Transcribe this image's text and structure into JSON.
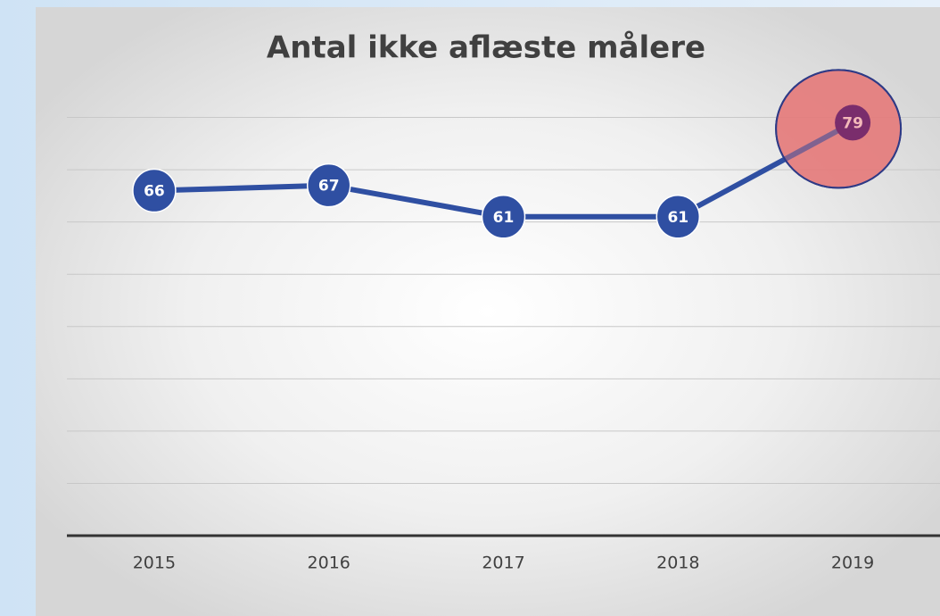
{
  "chart_data": {
    "type": "line",
    "title": "Antal ikke aflæste målere",
    "categories": [
      "2015",
      "2016",
      "2017",
      "2018",
      "2019"
    ],
    "values": [
      66,
      67,
      61,
      61,
      79
    ],
    "color": "#2f4fa2",
    "highlight_color": "#7a2d6c",
    "ylim": [
      0,
      90
    ],
    "yticks": [
      0,
      10,
      20,
      30,
      40,
      50,
      60,
      70,
      80
    ],
    "grid": true
  }
}
